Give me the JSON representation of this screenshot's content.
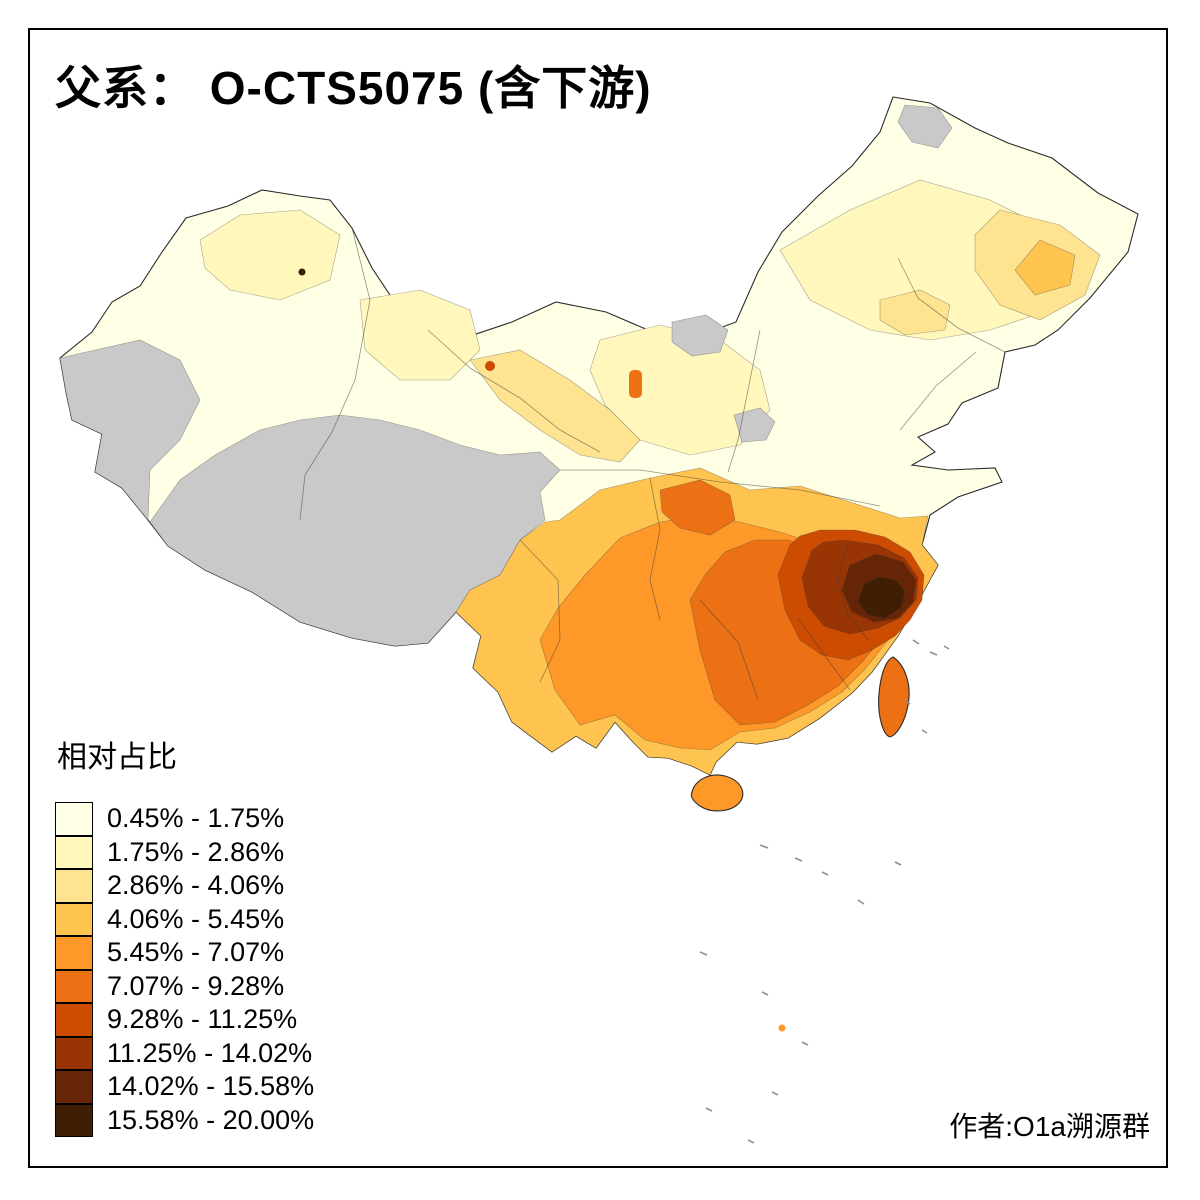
{
  "header": {
    "title": "父系： O-CTS5075 (含下游)"
  },
  "legend": {
    "title": "相对占比",
    "items": [
      {
        "label": "0.45% - 1.75%",
        "color": "#FFFFE5"
      },
      {
        "label": "1.75% - 2.86%",
        "color": "#FFF7BC"
      },
      {
        "label": "2.86% - 4.06%",
        "color": "#FEE391"
      },
      {
        "label": "4.06% - 5.45%",
        "color": "#FEC44F"
      },
      {
        "label": "5.45% - 7.07%",
        "color": "#FE9929"
      },
      {
        "label": "7.07% - 9.28%",
        "color": "#EC7014"
      },
      {
        "label": "9.28% - 11.25%",
        "color": "#CC4C02"
      },
      {
        "label": "11.25% - 14.02%",
        "color": "#993404"
      },
      {
        "label": "14.02% - 15.58%",
        "color": "#662506"
      },
      {
        "label": "15.58% - 20.00%",
        "color": "#401E04"
      }
    ]
  },
  "footer": {
    "credit": "作者:O1a溯源群"
  },
  "map": {
    "no_data_color": "#C9C9C9",
    "speck_color": "#8f8f8f",
    "regions": [
      {
        "name": "mainland-base",
        "color": "#FFFFE5"
      },
      {
        "name": "north-cream-patches",
        "color": "#FFF7BC"
      },
      {
        "name": "hexi-corridor-light",
        "color": "#FEE391"
      },
      {
        "name": "northeast-light",
        "color": "#FEE391"
      },
      {
        "name": "northeast-mid",
        "color": "#FEC44F"
      },
      {
        "name": "tibet-qinghai-no-data",
        "color": "#C9C9C9"
      },
      {
        "name": "west-xinjiang-no-data",
        "color": "#C9C9C9"
      },
      {
        "name": "inner-mongolia-no-data-west",
        "color": "#C9C9C9"
      },
      {
        "name": "inner-mongolia-no-data-east",
        "color": "#C9C9C9"
      },
      {
        "name": "northeast-top-no-data",
        "color": "#C9C9C9"
      },
      {
        "name": "south-china-band-light",
        "color": "#FEC44F"
      },
      {
        "name": "south-china-band-mid",
        "color": "#FE9929"
      },
      {
        "name": "south-china-band-strong",
        "color": "#EC7014"
      },
      {
        "name": "hubei-west-strong",
        "color": "#EC7014"
      },
      {
        "name": "southeast-dark",
        "color": "#CC4C02"
      },
      {
        "name": "zhejiang-ring-darker",
        "color": "#993404"
      },
      {
        "name": "zhejiang-core-dark",
        "color": "#662506"
      },
      {
        "name": "zhejiang-core-darkest",
        "color": "#401E04"
      },
      {
        "name": "taiwan",
        "color": "#EC7014"
      },
      {
        "name": "hainan",
        "color": "#FE9929"
      },
      {
        "name": "gansu-spot",
        "color": "#CC4C02"
      },
      {
        "name": "xinjiang-spot",
        "color": "#401E04"
      },
      {
        "name": "ningxia-spot",
        "color": "#EC7014"
      },
      {
        "name": "pratas-island-spot",
        "color": "#FE9929"
      }
    ]
  }
}
